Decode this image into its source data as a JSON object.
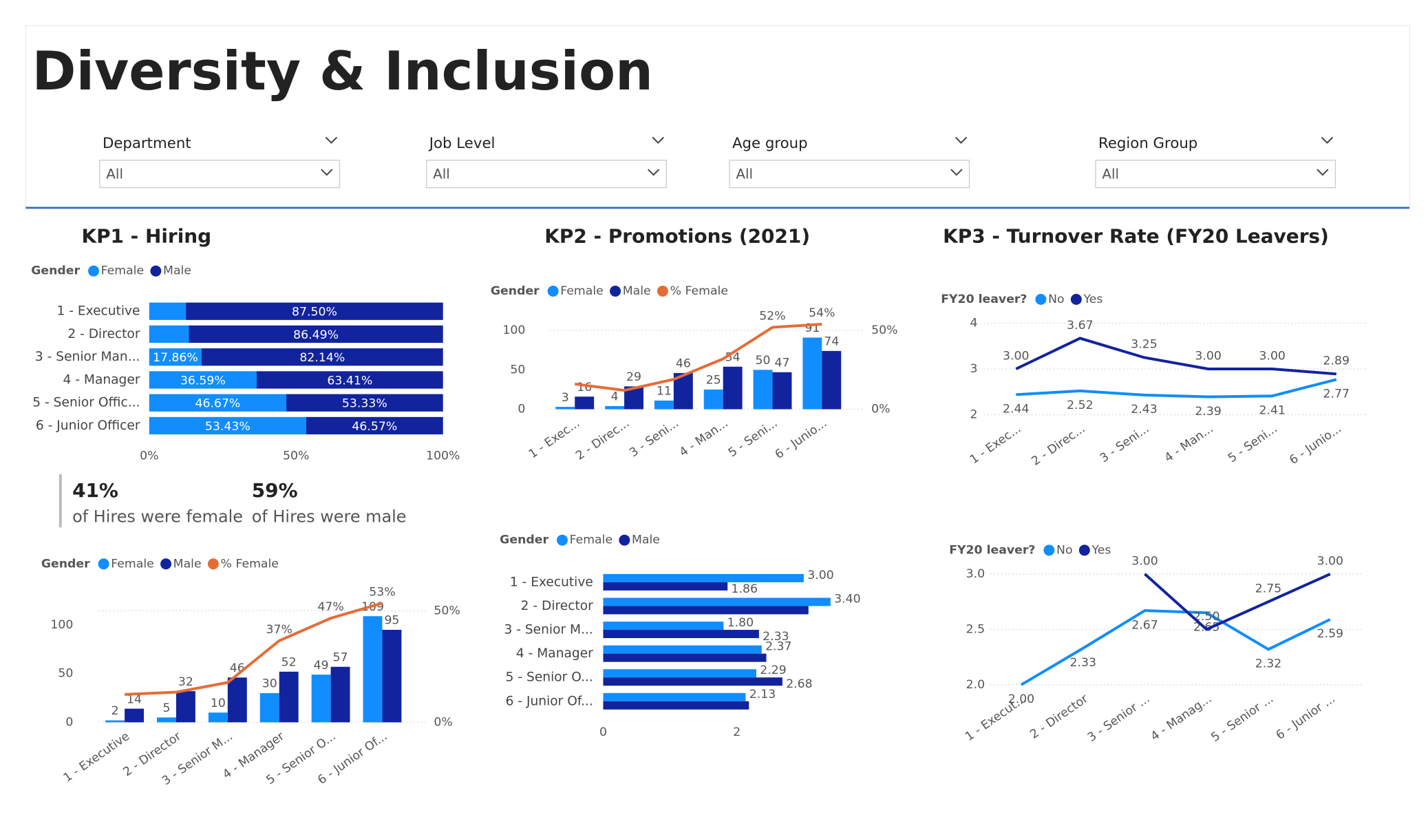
{
  "title": "Diversity & Inclusion",
  "filters": [
    {
      "label": "Department",
      "value": "All"
    },
    {
      "label": "Job Level",
      "value": "All"
    },
    {
      "label": "Age group",
      "value": "All"
    },
    {
      "label": "Region Group",
      "value": "All"
    }
  ],
  "kpis": [
    {
      "value": "41%",
      "text": "of Hires were female"
    },
    {
      "value": "59%",
      "text": "of Hires were male"
    }
  ],
  "chart_data": [
    {
      "type": "bar",
      "horizontal": true,
      "stacked": true,
      "title": "KP1 - Hiring",
      "legend_title": "Gender",
      "categories": [
        "1 - Executive",
        "2 - Director",
        "3 - Senior Man...",
        "4 - Manager",
        "5 - Senior Offic...",
        "6 - Junior Officer"
      ],
      "series": [
        {
          "name": "Female",
          "color": "#118dff",
          "values": [
            12.5,
            13.51,
            17.86,
            36.59,
            46.67,
            53.43
          ],
          "value_labels": [
            null,
            null,
            "17.86%",
            "36.59%",
            "46.67%",
            "53.43%"
          ]
        },
        {
          "name": "Male",
          "color": "#12239e",
          "values": [
            87.5,
            86.49,
            82.14,
            63.41,
            53.33,
            46.57
          ],
          "value_labels": [
            "87.50%",
            "86.49%",
            "82.14%",
            "63.41%",
            "53.33%",
            "46.57%"
          ]
        }
      ],
      "xlim": [
        0,
        100
      ],
      "xticks": [
        {
          "value": 0,
          "label": "0%"
        },
        {
          "value": 50,
          "label": "50%"
        },
        {
          "value": 100,
          "label": "100%"
        }
      ],
      "grid": false
    },
    {
      "type": "combo",
      "legend_title": "Gender",
      "categories": [
        "1 - Executive",
        "2 - Director",
        "3 - Senior M...",
        "4 - Manager",
        "5 - Senior O...",
        "6 - Junior Of..."
      ],
      "series": [
        {
          "name": "Female",
          "color": "#118dff",
          "values": [
            2,
            5,
            10,
            30,
            49,
            109
          ]
        },
        {
          "name": "Male",
          "color": "#12239e",
          "values": [
            14,
            32,
            46,
            52,
            57,
            95
          ]
        },
        {
          "name": "% Female",
          "color": "#e66c37",
          "axis": "y2",
          "values": [
            12.5,
            13.51,
            17.86,
            36.59,
            46.67,
            53.43
          ],
          "value_labels": [
            null,
            null,
            null,
            "37%",
            "47%",
            "53%"
          ]
        }
      ],
      "ylim": [
        0,
        126
      ],
      "yticks": [
        0,
        50,
        100
      ],
      "y2lim": [
        0,
        55
      ],
      "y2ticks": [
        {
          "value": 0,
          "label": "0%"
        },
        {
          "value": 50,
          "label": "50%"
        }
      ],
      "grid": true
    },
    {
      "type": "combo",
      "title": "KP2 - Promotions (2021)",
      "legend_title": "Gender",
      "categories": [
        "1 - Exec...",
        "2 - Direc...",
        "3 - Seni...",
        "4 - Man...",
        "5 - Seni...",
        "6 - Junio..."
      ],
      "series": [
        {
          "name": "Female",
          "color": "#118dff",
          "values": [
            3,
            4,
            11,
            25,
            50,
            91
          ]
        },
        {
          "name": "Male",
          "color": "#12239e",
          "values": [
            16,
            29,
            46,
            54,
            47,
            74
          ]
        },
        {
          "name": "% Female",
          "color": "#e66c37",
          "axis": "y2",
          "values": [
            16,
            12,
            19,
            32,
            52,
            54
          ],
          "value_labels": [
            null,
            null,
            null,
            null,
            "52%",
            "54%"
          ]
        }
      ],
      "ylim": [
        0,
        110
      ],
      "yticks": [
        0,
        50,
        100
      ],
      "y2lim": [
        0,
        55
      ],
      "y2ticks": [
        {
          "value": 0,
          "label": "0%"
        },
        {
          "value": 50,
          "label": "50%"
        }
      ],
      "grid": true
    },
    {
      "type": "bar",
      "horizontal": true,
      "stacked": false,
      "legend_title": "Gender",
      "categories": [
        "1 - Executive",
        "2 - Director",
        "3 - Senior M...",
        "4 - Manager",
        "5 - Senior O...",
        "6 - Junior Of..."
      ],
      "series": [
        {
          "name": "Female",
          "color": "#118dff",
          "values": [
            3,
            3.4,
            1.8,
            2.37,
            2.29,
            2.13
          ],
          "value_labels": [
            "3.00",
            "3.40",
            "1.80",
            "2.37",
            "2.29",
            "2.13"
          ]
        },
        {
          "name": "Male",
          "color": "#12239e",
          "values": [
            1.86,
            3.07,
            2.33,
            2.44,
            2.68,
            2.18
          ],
          "value_labels": [
            "1.86",
            null,
            "2.33",
            null,
            "2.68",
            null
          ]
        }
      ],
      "xlim": [
        0,
        3.6
      ],
      "xticks": [
        0,
        2
      ],
      "grid": false
    },
    {
      "type": "line",
      "title": "KP3 - Turnover Rate (FY20 Leavers)",
      "legend_title": "FY20 leaver?",
      "categories": [
        "1 - Exec...",
        "2 - Direc...",
        "3 - Seni...",
        "4 - Man...",
        "5 - Seni...",
        "6 - Junio..."
      ],
      "series": [
        {
          "name": "No",
          "color": "#118dff",
          "values": [
            2.44,
            2.52,
            2.43,
            2.39,
            2.41,
            2.77
          ],
          "value_labels": [
            "2.44",
            "2.52",
            "2.43",
            "2.39",
            "2.41",
            "2.77"
          ]
        },
        {
          "name": "Yes",
          "color": "#12239e",
          "values": [
            3,
            3.67,
            3.25,
            3,
            3,
            2.89
          ],
          "value_labels": [
            "3.00",
            "3.67",
            "3.25",
            "3.00",
            "3.00",
            "2.89"
          ]
        }
      ],
      "ylim": [
        2,
        4
      ],
      "yticks": [
        2,
        3,
        4
      ],
      "grid": true
    },
    {
      "type": "line",
      "legend_title": "FY20 leaver?",
      "categories": [
        "1 - Execut...",
        "2 - Director",
        "3 - Senior ...",
        "4 - Manag...",
        "5 - Senior ...",
        "6 - Junior ..."
      ],
      "series": [
        {
          "name": "No",
          "color": "#118dff",
          "values": [
            2,
            2.33,
            2.67,
            2.65,
            2.32,
            2.59
          ],
          "value_labels": [
            "2.00",
            "2.33",
            "2.67",
            "2.65",
            "2.32",
            "2.59"
          ]
        },
        {
          "name": "Yes",
          "color": "#12239e",
          "values": [
            null,
            null,
            3,
            2.5,
            2.75,
            3
          ],
          "value_labels": [
            null,
            null,
            "3.00",
            "2.50",
            "2.75",
            "3.00"
          ]
        }
      ],
      "ylim": [
        2,
        3
      ],
      "yticks": [
        {
          "value": 2,
          "label": "2.0"
        },
        2.5,
        {
          "value": 3,
          "label": "3.0"
        }
      ],
      "grid": true
    }
  ]
}
